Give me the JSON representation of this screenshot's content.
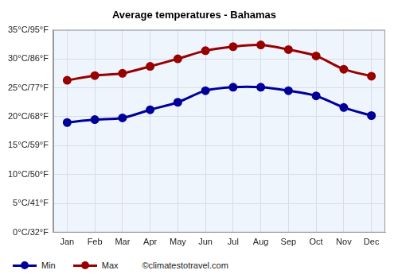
{
  "chart_data": {
    "type": "line",
    "title": "Average temperatures - Bahamas",
    "categories": [
      "Jan",
      "Feb",
      "Mar",
      "Apr",
      "May",
      "Jun",
      "Jul",
      "Aug",
      "Sep",
      "Oct",
      "Nov",
      "Dec"
    ],
    "series": [
      {
        "name": "Min",
        "color": "#000099",
        "marker": "circle",
        "line_style": "solid",
        "values": [
          19.0,
          19.5,
          19.8,
          21.2,
          22.5,
          24.5,
          25.1,
          25.1,
          24.5,
          23.6,
          21.6,
          20.2
        ]
      },
      {
        "name": "Max",
        "color": "#990000",
        "marker": "circle",
        "line_style": "solid",
        "values": [
          26.3,
          27.1,
          27.5,
          28.7,
          30.0,
          31.4,
          32.1,
          32.4,
          31.6,
          30.5,
          28.2,
          27.0
        ]
      }
    ],
    "ylim": [
      0,
      35
    ],
    "yticks": [
      {
        "value": 0,
        "label": "0°C/32°F"
      },
      {
        "value": 5,
        "label": "5°C/41°F"
      },
      {
        "value": 10,
        "label": "10°C/50°F"
      },
      {
        "value": 15,
        "label": "15°C/59°F"
      },
      {
        "value": 20,
        "label": "20°C/68°F"
      },
      {
        "value": 25,
        "label": "25°C/77°F"
      },
      {
        "value": 30,
        "label": "30°C/86°F"
      },
      {
        "value": 35,
        "label": "35°C/95°F"
      }
    ],
    "grid": true,
    "legend": "bottom-left",
    "annotations": [
      "©climatestotravel.com"
    ]
  }
}
